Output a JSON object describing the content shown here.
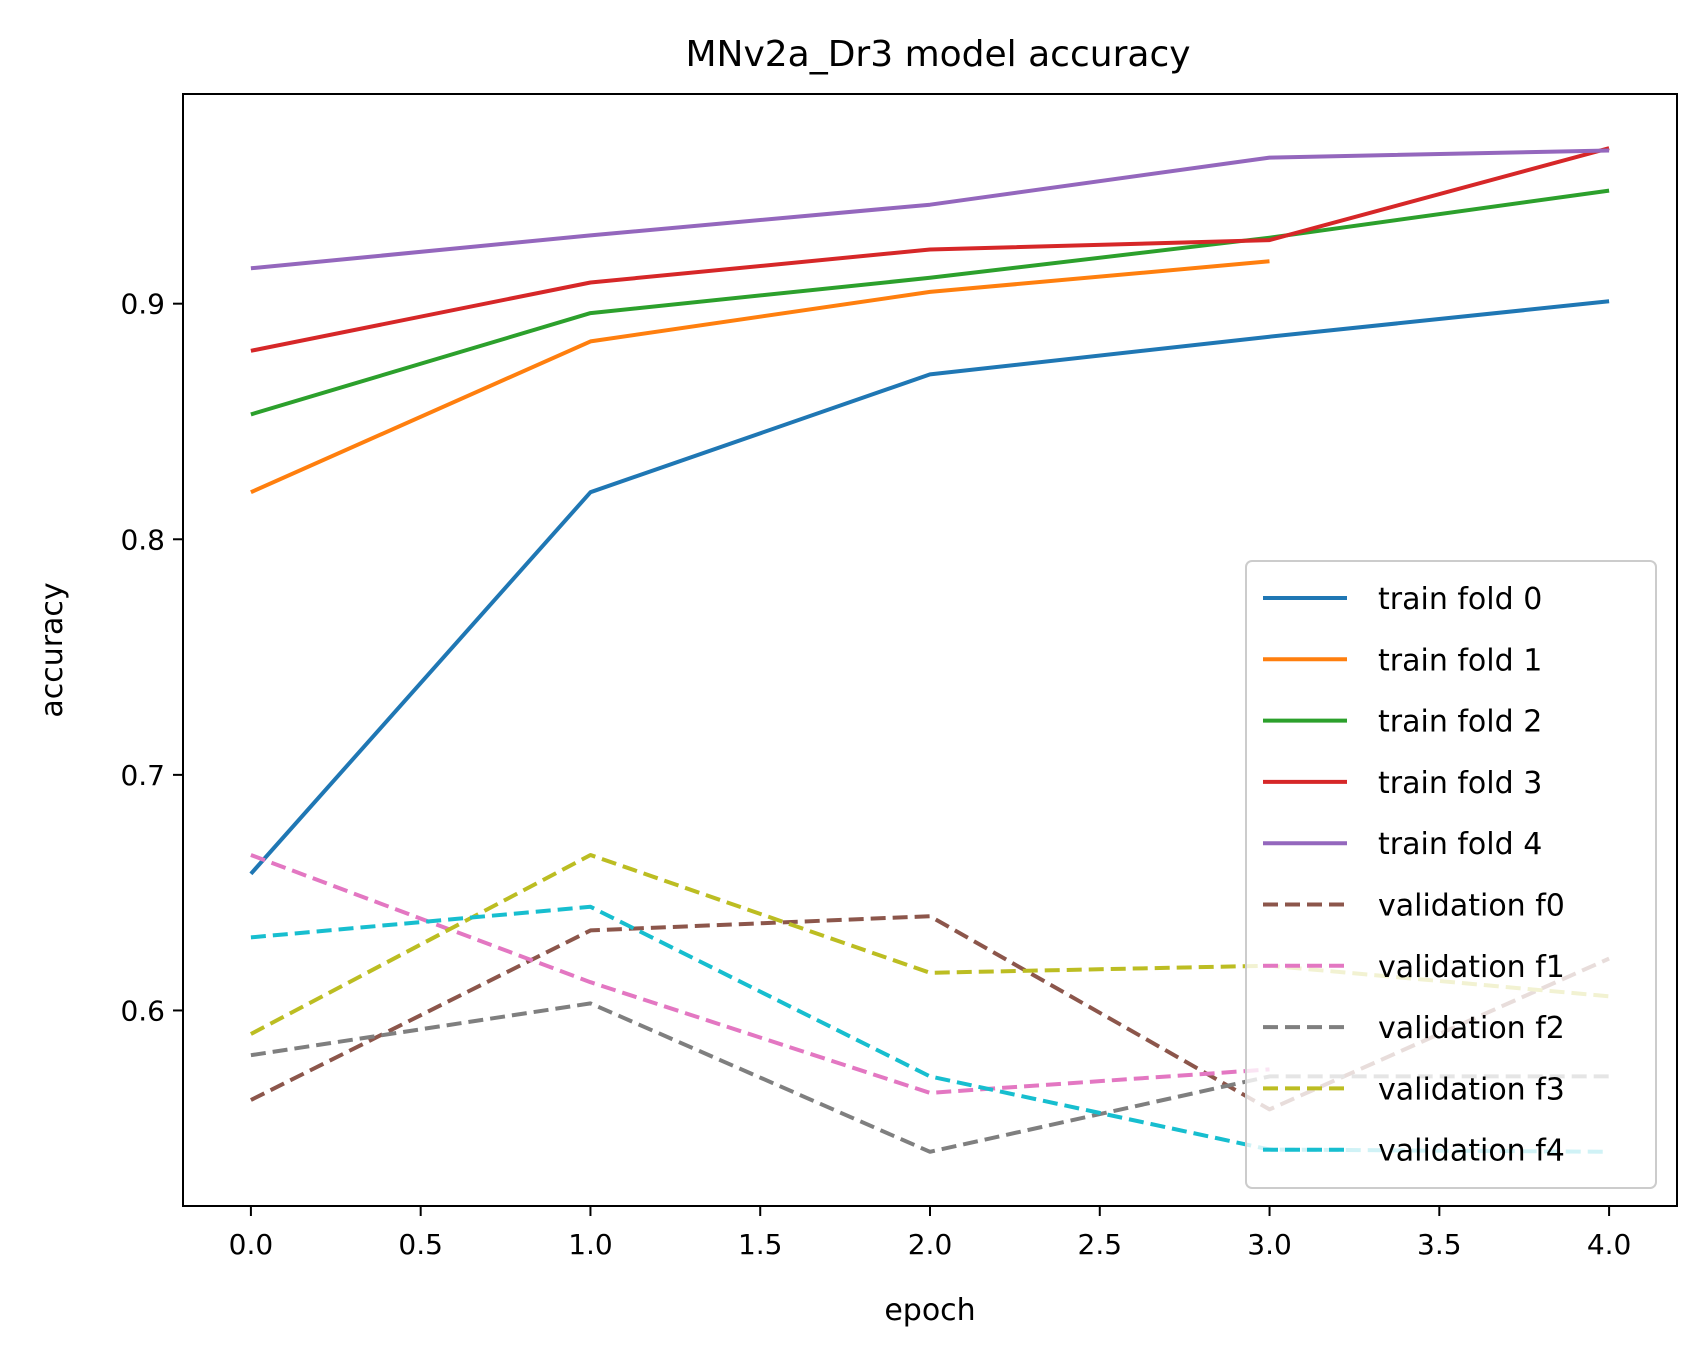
{
  "chart_data": {
    "type": "line",
    "title": "MNv2a_Dr3 model accuracy",
    "xlabel": "epoch",
    "ylabel": "accuracy",
    "xlim": [
      -0.2,
      4.2
    ],
    "ylim": [
      0.517,
      0.989
    ],
    "xticks": [
      0.0,
      0.5,
      1.0,
      1.5,
      2.0,
      2.5,
      3.0,
      3.5,
      4.0
    ],
    "xtick_labels": [
      "0.0",
      "0.5",
      "1.0",
      "1.5",
      "2.0",
      "2.5",
      "3.0",
      "3.5",
      "4.0"
    ],
    "yticks": [
      0.6,
      0.7,
      0.8,
      0.9
    ],
    "ytick_labels": [
      "0.6",
      "0.7",
      "0.8",
      "0.9"
    ],
    "grid": false,
    "legend_position": "lower-right",
    "series": [
      {
        "name": "train fold 0",
        "color": "#1f77b4",
        "style": "solid",
        "x": [
          0,
          1,
          2,
          3,
          4
        ],
        "values": [
          0.658,
          0.82,
          0.87,
          0.886,
          0.901
        ]
      },
      {
        "name": "train fold 1",
        "color": "#ff7f0e",
        "style": "solid",
        "x": [
          0,
          1,
          2,
          3
        ],
        "values": [
          0.82,
          0.884,
          0.905,
          0.918
        ]
      },
      {
        "name": "train fold 2",
        "color": "#2ca02c",
        "style": "solid",
        "x": [
          0,
          1,
          2,
          3,
          4
        ],
        "values": [
          0.853,
          0.896,
          0.911,
          0.928,
          0.948
        ]
      },
      {
        "name": "train fold 3",
        "color": "#d62728",
        "style": "solid",
        "x": [
          0,
          1,
          2,
          3,
          4
        ],
        "values": [
          0.88,
          0.909,
          0.923,
          0.927,
          0.966
        ]
      },
      {
        "name": "train fold 4",
        "color": "#9467bd",
        "style": "solid",
        "x": [
          0,
          1,
          2,
          3,
          4
        ],
        "values": [
          0.915,
          0.929,
          0.942,
          0.962,
          0.965
        ]
      },
      {
        "name": "validation f0",
        "color": "#8c564b",
        "style": "dashed",
        "x": [
          0,
          1,
          2,
          3,
          4
        ],
        "values": [
          0.562,
          0.634,
          0.64,
          0.558,
          0.622
        ]
      },
      {
        "name": "validation f1",
        "color": "#e377c2",
        "style": "dashed",
        "x": [
          0,
          1,
          2,
          3
        ],
        "values": [
          0.666,
          0.612,
          0.565,
          0.575
        ]
      },
      {
        "name": "validation f2",
        "color": "#7f7f7f",
        "style": "dashed",
        "x": [
          0,
          1,
          2,
          3,
          4
        ],
        "values": [
          0.581,
          0.603,
          0.54,
          0.572,
          0.572
        ]
      },
      {
        "name": "validation f3",
        "color": "#bcbd22",
        "style": "dashed",
        "x": [
          0,
          1,
          2,
          3,
          4
        ],
        "values": [
          0.59,
          0.666,
          0.616,
          0.619,
          0.606
        ]
      },
      {
        "name": "validation f4",
        "color": "#17becf",
        "style": "dashed",
        "x": [
          0,
          1,
          2,
          3,
          4
        ],
        "values": [
          0.631,
          0.644,
          0.572,
          0.541,
          0.54
        ]
      }
    ]
  }
}
